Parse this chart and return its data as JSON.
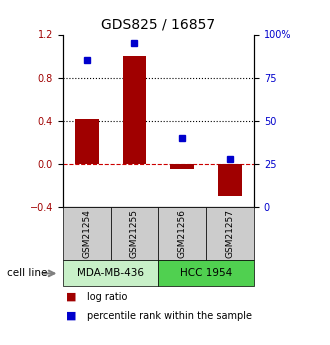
{
  "title": "GDS825 / 16857",
  "samples": [
    "GSM21254",
    "GSM21255",
    "GSM21256",
    "GSM21257"
  ],
  "log_ratios": [
    0.42,
    1.0,
    -0.05,
    -0.3
  ],
  "percentile_ranks": [
    85,
    95,
    40,
    28
  ],
  "cell_lines": [
    {
      "label": "MDA-MB-436",
      "samples": [
        0,
        1
      ],
      "color": "#c8f0c8"
    },
    {
      "label": "HCC 1954",
      "samples": [
        2,
        3
      ],
      "color": "#50d050"
    }
  ],
  "bar_color": "#a00000",
  "dot_color": "#0000cc",
  "left_ylim": [
    -0.4,
    1.2
  ],
  "right_ylim": [
    0,
    100
  ],
  "left_yticks": [
    -0.4,
    0.0,
    0.4,
    0.8,
    1.2
  ],
  "right_yticks": [
    0,
    25,
    50,
    75,
    100
  ],
  "right_yticklabels": [
    "0",
    "25",
    "50",
    "75",
    "100%"
  ],
  "hline_dotted": [
    0.4,
    0.8
  ],
  "hline_dashed": 0.0,
  "bar_width": 0.5,
  "sample_box_color": "#cccccc",
  "cell_line_label": "cell line",
  "legend_red_label": "log ratio",
  "legend_blue_label": "percentile rank within the sample"
}
